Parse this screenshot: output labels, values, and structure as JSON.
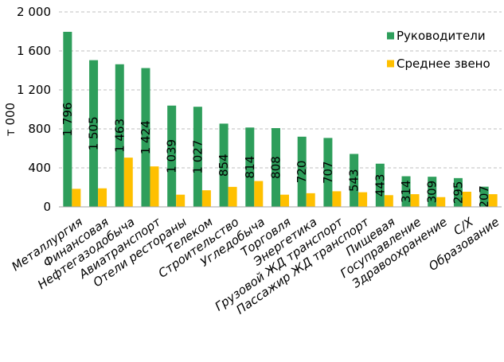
{
  "chart_data": {
    "type": "bar",
    "title": "",
    "ylabel": "т 000",
    "xlabel": "",
    "ylim": [
      0,
      2000
    ],
    "yticks": [
      0,
      400,
      800,
      1200,
      1600,
      2000
    ],
    "ytick_labels": [
      "0",
      "400",
      "800",
      "1 200",
      "1 600",
      "2 000"
    ],
    "grid": "horizontal-dashed",
    "legend_position": "top-right",
    "categories": [
      "Металлургия",
      "Финансовая",
      "Нефтегазодобыча",
      "Авиатранспорт",
      "Отели рестораны",
      "Телеком",
      "Строительство",
      "Угледобыча",
      "Торговля",
      "Энергетика",
      "Грузовой ЖД транспорт",
      "Пассажир ЖД транспорт",
      "Пищевая",
      "Госуправление",
      "Здравоохранение",
      "С/Х",
      "Образование"
    ],
    "series": [
      {
        "name": "Руководители",
        "color": "#2e9e5b",
        "values": [
          1796,
          1505,
          1463,
          1424,
          1039,
          1027,
          854,
          814,
          808,
          720,
          707,
          543,
          443,
          314,
          309,
          295,
          207
        ],
        "labels": [
          "1 796",
          "1 505",
          "1 463",
          "1 424",
          "1 039",
          "1 027",
          "854",
          "814",
          "808",
          "720",
          "707",
          "543",
          "443",
          "314",
          "309",
          "295",
          "207"
        ]
      },
      {
        "name": "Среднее звено",
        "color": "#ffc000",
        "values": [
          185,
          190,
          505,
          415,
          125,
          170,
          205,
          265,
          125,
          140,
          160,
          150,
          120,
          130,
          100,
          155,
          130
        ]
      }
    ]
  }
}
